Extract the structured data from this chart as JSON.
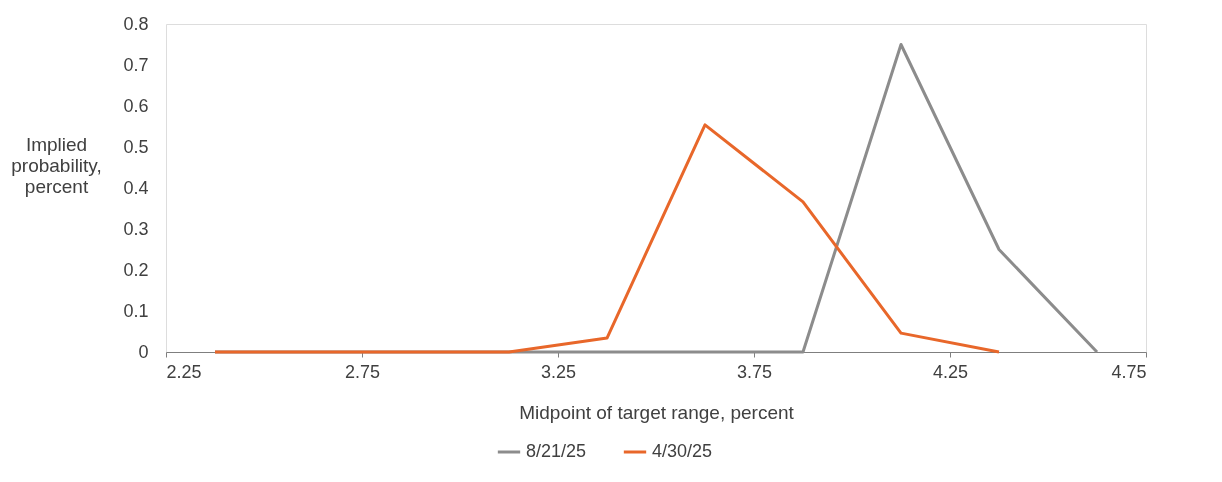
{
  "chart_data": {
    "type": "line",
    "xlabel": "Midpoint of target range, percent",
    "ylabel": "Implied probability, percent",
    "x": [
      2.375,
      2.625,
      2.875,
      3.125,
      3.375,
      3.625,
      3.875,
      4.125,
      4.375,
      4.625
    ],
    "series": [
      {
        "name": "8/21/25",
        "color": "#8c8c8c",
        "values": [
          0,
          0,
          0,
          0,
          0,
          0,
          0,
          0.75,
          0.25,
          0
        ]
      },
      {
        "name": "4/30/25",
        "color": "#e8672a",
        "x": [
          2.375,
          2.625,
          2.875,
          3.125,
          3.375,
          3.625,
          3.875,
          4.125,
          4.375
        ],
        "values": [
          0,
          0,
          0,
          0,
          0.034,
          0.554,
          0.366,
          0.046,
          0
        ]
      }
    ],
    "xlim": [
      2.25,
      4.75
    ],
    "xticks": [
      2.25,
      2.75,
      3.25,
      3.75,
      4.25,
      4.75
    ],
    "ylim": [
      0,
      0.8
    ],
    "yticks": [
      0,
      0.1,
      0.2,
      0.3,
      0.4,
      0.5,
      0.6,
      0.7,
      0.8
    ],
    "grid": false,
    "legend": "bottom",
    "marker": "none",
    "line_style": "solid"
  }
}
